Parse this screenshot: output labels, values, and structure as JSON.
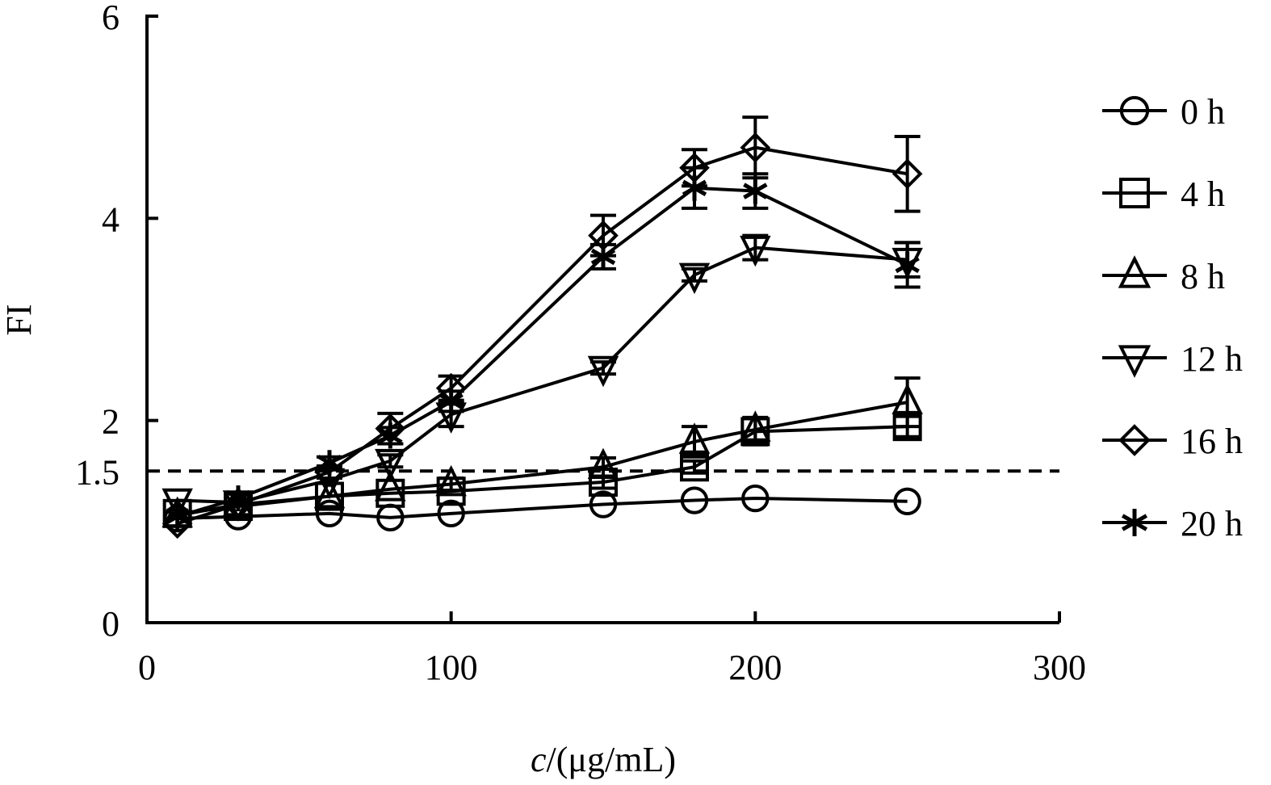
{
  "chart_data": {
    "type": "line",
    "title": "",
    "xlabel_italic": "c",
    "xlabel_rest": "/(μg/mL)",
    "ylabel": "FI",
    "xlim": [
      0,
      300
    ],
    "ylim": [
      0,
      6
    ],
    "xticks": [
      "0",
      "100",
      "200",
      "300"
    ],
    "yticks": [
      "0",
      "1.5",
      "2",
      "4",
      "6"
    ],
    "xtick_values": [
      0,
      100,
      200,
      300
    ],
    "ytick_values": [
      0,
      1.5,
      2,
      4,
      6
    ],
    "grid": false,
    "legend_position": "right",
    "reference_line": {
      "y": 1.5,
      "style": "dashed"
    },
    "x": [
      10,
      30,
      60,
      80,
      100,
      150,
      180,
      200,
      250
    ],
    "series": [
      {
        "name": "0 h",
        "marker": "circle",
        "values": [
          1.03,
          1.05,
          1.08,
          1.04,
          1.08,
          1.17,
          1.21,
          1.23,
          1.2
        ],
        "errors": [
          0.03,
          0.03,
          0.03,
          0.03,
          0.03,
          0.03,
          0.03,
          0.03,
          0.03
        ]
      },
      {
        "name": "4 h",
        "marker": "square",
        "values": [
          1.08,
          1.15,
          1.25,
          1.28,
          1.3,
          1.39,
          1.54,
          1.89,
          1.94
        ],
        "errors": [
          0.04,
          0.04,
          0.05,
          0.05,
          0.05,
          0.06,
          0.06,
          0.13,
          0.1
        ]
      },
      {
        "name": "8 h",
        "marker": "triangle-up",
        "values": [
          1.06,
          1.17,
          1.25,
          1.32,
          1.37,
          1.54,
          1.79,
          1.91,
          2.18
        ],
        "errors": [
          0.04,
          0.04,
          0.05,
          0.05,
          0.06,
          0.09,
          0.15,
          0.12,
          0.24
        ]
      },
      {
        "name": "12 h",
        "marker": "triangle-down",
        "values": [
          1.21,
          1.19,
          1.41,
          1.6,
          2.06,
          2.52,
          3.44,
          3.71,
          3.59
        ],
        "errors": [
          0.04,
          0.04,
          0.05,
          0.06,
          0.12,
          0.06,
          0.06,
          0.12,
          0.17
        ]
      },
      {
        "name": "16 h",
        "marker": "diamond",
        "values": [
          0.98,
          1.17,
          1.49,
          1.92,
          2.32,
          3.83,
          4.5,
          4.7,
          4.44
        ],
        "errors": [
          0.04,
          0.04,
          0.06,
          0.15,
          0.12,
          0.2,
          0.18,
          0.3,
          0.37
        ]
      },
      {
        "name": "20 h",
        "marker": "asterisk",
        "values": [
          1.05,
          1.23,
          1.58,
          1.85,
          2.19,
          3.62,
          4.3,
          4.27,
          3.54
        ],
        "errors": [
          0.04,
          0.04,
          0.06,
          0.08,
          0.1,
          0.12,
          0.2,
          0.17,
          0.22
        ]
      }
    ]
  }
}
